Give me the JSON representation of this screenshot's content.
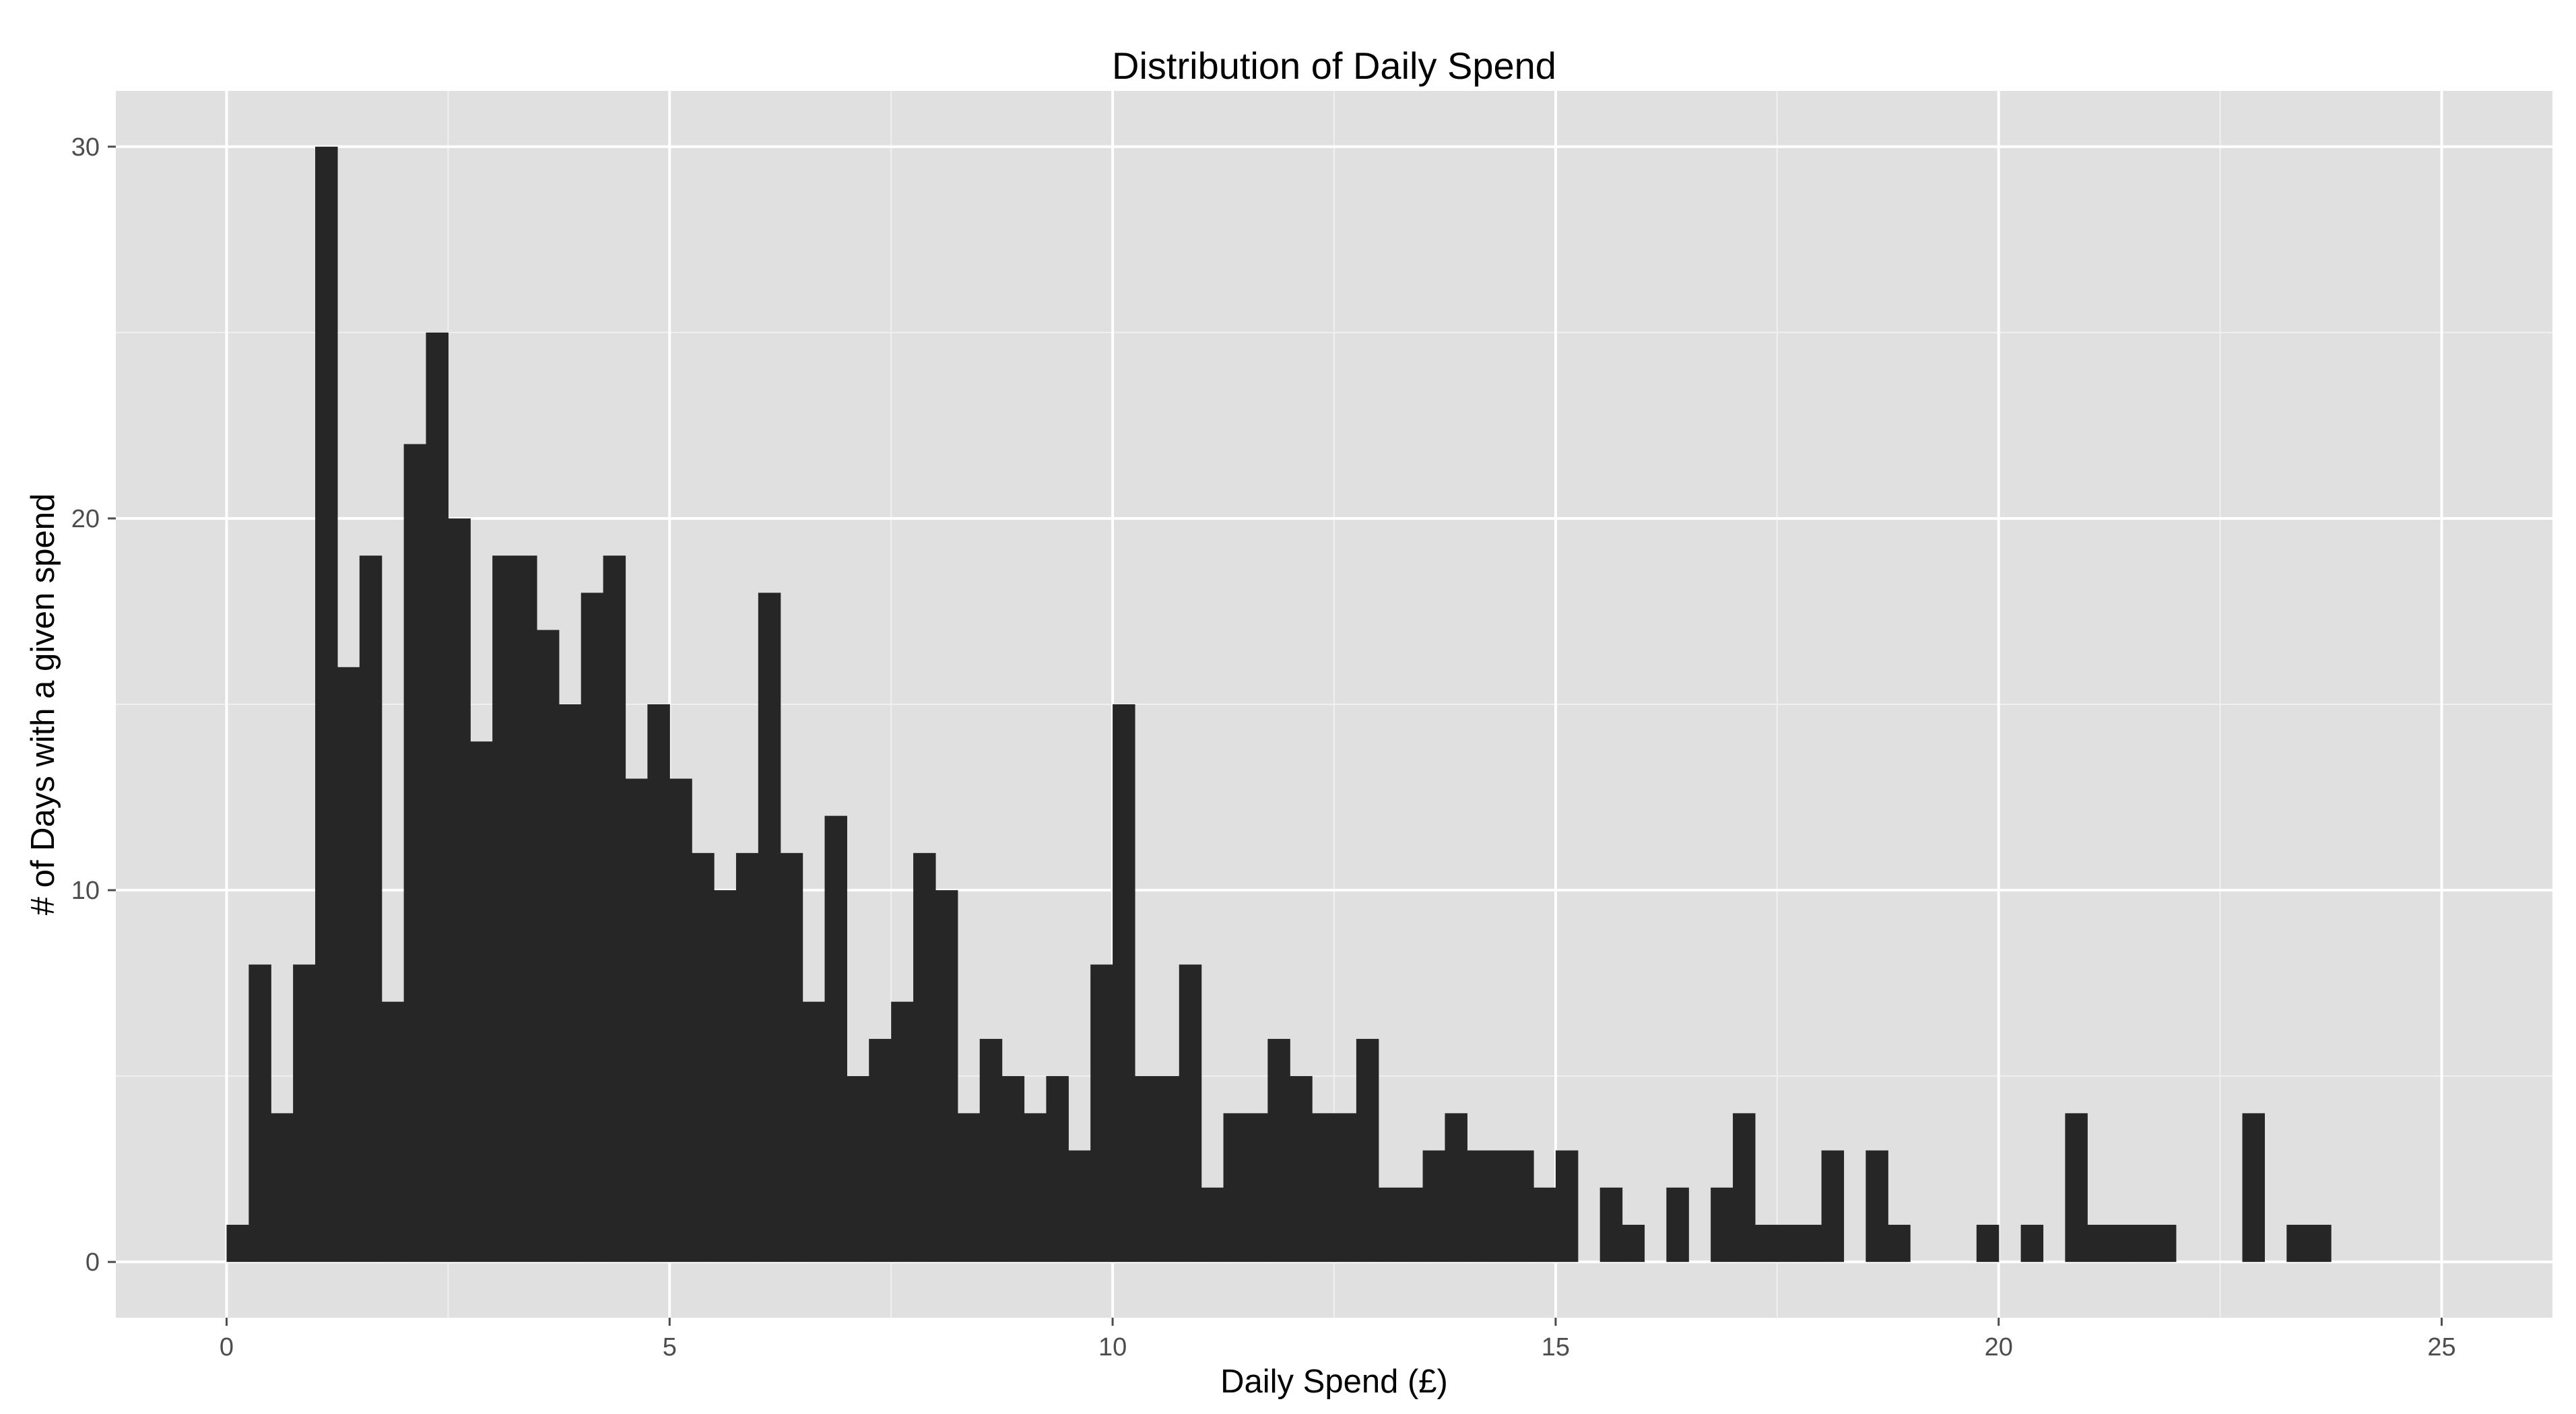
{
  "chart_data": {
    "type": "bar",
    "title": "Distribution of Daily Spend",
    "xlabel": "Daily Spend (£)",
    "ylabel": "# of Days with a given spend",
    "binwidth": 0.25,
    "x_start": 0,
    "xlim": [
      -1.25,
      26.25
    ],
    "ylim": [
      -1.5,
      31.5
    ],
    "x_ticks": [
      0,
      5,
      10,
      15,
      20,
      25
    ],
    "y_ticks": [
      0,
      10,
      20,
      30
    ],
    "grid": true,
    "bar_color": "#262626",
    "panel_color": "#e0e0e0",
    "grid_color": "#ffffff",
    "values": [
      1,
      8,
      4,
      8,
      30,
      16,
      19,
      7,
      22,
      25,
      20,
      14,
      19,
      19,
      17,
      15,
      18,
      19,
      13,
      15,
      13,
      11,
      10,
      11,
      18,
      11,
      7,
      12,
      5,
      6,
      7,
      11,
      10,
      4,
      6,
      5,
      4,
      5,
      3,
      8,
      15,
      5,
      5,
      8,
      2,
      4,
      4,
      6,
      5,
      4,
      4,
      6,
      2,
      2,
      3,
      4,
      3,
      3,
      3,
      2,
      3,
      0,
      2,
      1,
      0,
      2,
      0,
      2,
      4,
      1,
      1,
      1,
      3,
      0,
      3,
      1,
      0,
      0,
      0,
      1,
      0,
      1,
      0,
      4,
      1,
      1,
      1,
      1,
      0,
      0,
      0,
      4,
      0,
      1,
      1
    ]
  }
}
